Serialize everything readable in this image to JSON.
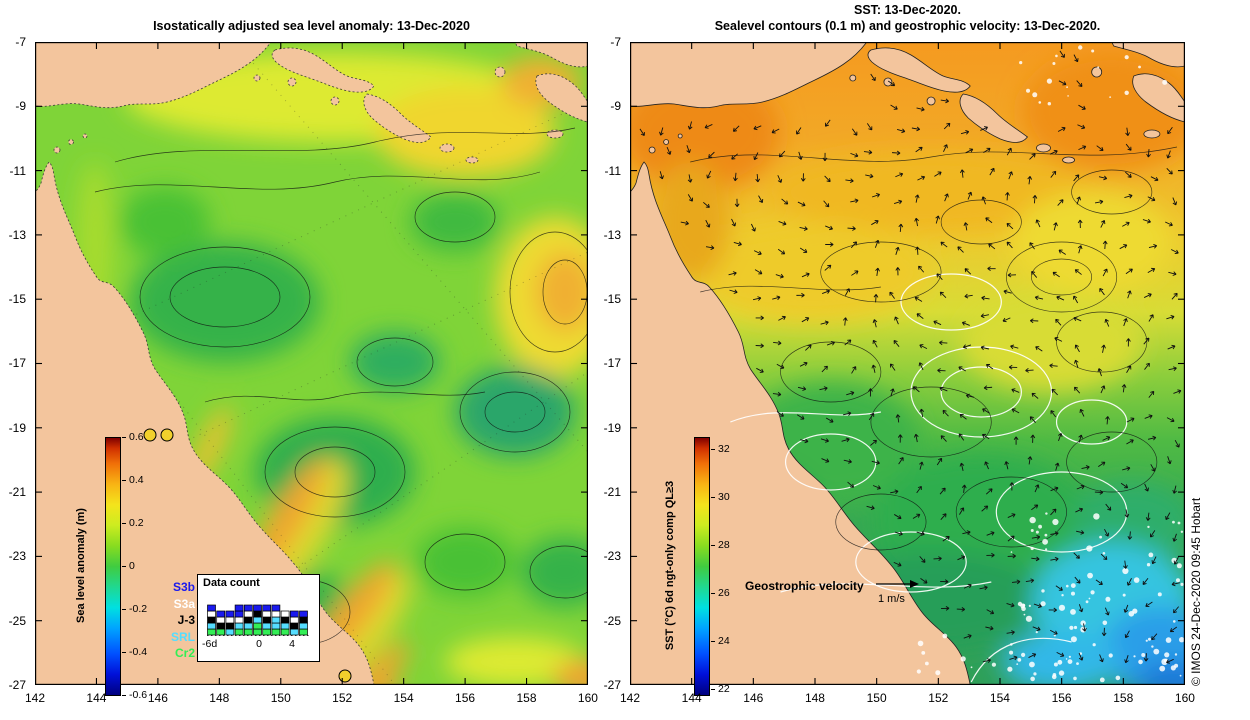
{
  "left_panel": {
    "title": "Isostatically adjusted sea level anomaly: 13-Dec-2020",
    "colorbar": {
      "label": "Sea level anomaly (m)",
      "ticks": [
        "0.6",
        "0.4",
        "0.2",
        "0",
        "-0.2",
        "-0.4",
        "-0.6"
      ]
    },
    "data_count": {
      "title": "Data count",
      "satellites": [
        {
          "label": "S3b",
          "color": "#1a1aee"
        },
        {
          "label": "S3a",
          "color": "#ffffff"
        },
        {
          "label": "J-3",
          "color": "#000000"
        },
        {
          "label": "SRL",
          "color": "#55ddff"
        },
        {
          "label": "Cr2",
          "color": "#33ee55"
        }
      ],
      "x_ticks": [
        "-6d",
        "0",
        "4"
      ],
      "bars": [
        [
          1,
          1,
          1,
          1,
          1
        ],
        [
          1,
          0,
          1,
          1,
          1
        ],
        [
          0,
          1,
          1,
          1,
          1
        ],
        [
          1,
          1,
          0,
          1,
          2
        ],
        [
          1,
          1,
          1,
          1,
          1
        ],
        [
          2,
          1,
          1,
          0,
          1
        ],
        [
          1,
          1,
          1,
          1,
          1
        ],
        [
          1,
          2,
          0,
          1,
          1
        ],
        [
          1,
          1,
          1,
          1,
          0
        ],
        [
          0,
          1,
          1,
          1,
          1
        ],
        [
          1,
          1,
          1,
          0,
          1
        ]
      ]
    }
  },
  "right_panel": {
    "title_line1": "SST: 13-Dec-2020.",
    "title_line2": "Sealevel contours (0.1 m) and geostrophic velocity: 13-Dec-2020.",
    "colorbar": {
      "label": "SST (°C) 6d ngt-only comp QL≥3",
      "ticks": [
        "32",
        "30",
        "28",
        "26",
        "24",
        "22"
      ]
    },
    "velocity_legend": {
      "label": "Geostrophic velocity",
      "scale": "1 m/s"
    },
    "credit": "© IMOS 24-Dec-2020 09:45 Hobart"
  },
  "axes": {
    "lat_ticks": [
      "-7",
      "-9",
      "-11",
      "-13",
      "-15",
      "-17",
      "-19",
      "-21",
      "-23",
      "-25",
      "-27"
    ],
    "lon_ticks": [
      "142",
      "144",
      "146",
      "148",
      "150",
      "152",
      "154",
      "156",
      "158",
      "160"
    ]
  },
  "colors": {
    "land": "#f3c59d",
    "sla_ocean_base": "#7fd438",
    "marker_fill": "#f2d02c"
  }
}
